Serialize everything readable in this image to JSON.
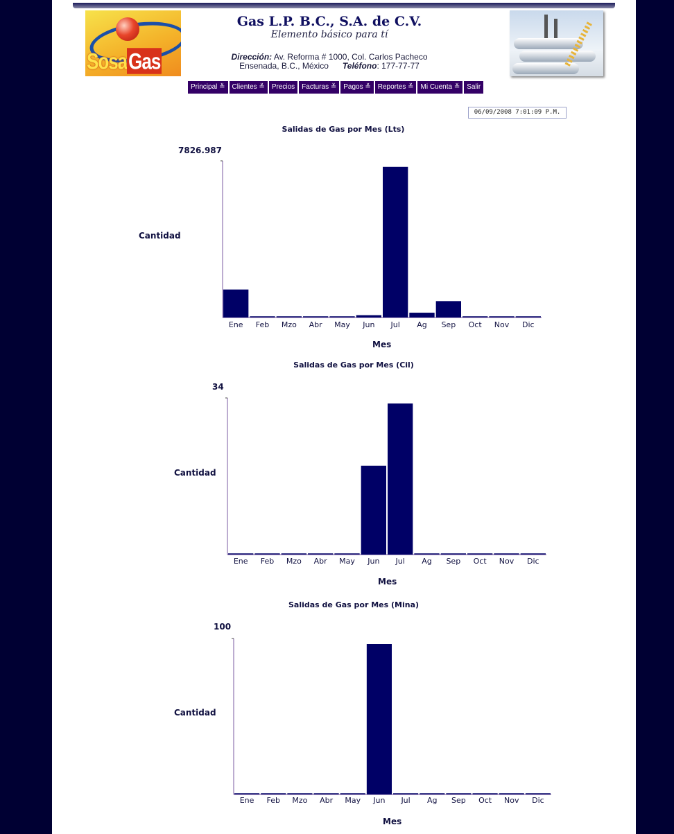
{
  "header": {
    "company": "Gas L.P. B.C., S.A. de C.V.",
    "slogan": "Elemento básico para tí",
    "address_label": "Dirección:",
    "address_value": " Av. Reforma # 1000, Col. Carlos Pacheco",
    "city": "Ensenada, B.C., México",
    "phone_label": "Teléfono",
    "phone_value": ":  177-77-77",
    "logo_word_1": "Sosa",
    "logo_word_2": "Gas"
  },
  "nav": [
    {
      "label": "Principal ≚"
    },
    {
      "label": "Clientes ≚"
    },
    {
      "label": "Precios"
    },
    {
      "label": "Facturas ≚"
    },
    {
      "label": "Pagos ≚"
    },
    {
      "label": "Reportes ≚"
    },
    {
      "label": "Mi Cuenta ≚"
    },
    {
      "label": "Salir"
    }
  ],
  "datetime": "06/09/2008   7:01:09 P.M.",
  "colors": {
    "bar": "#000066",
    "axis": "#7a5aa0",
    "nav": "#330066",
    "background": "#000033"
  },
  "chart_data": [
    {
      "type": "bar",
      "title": "Salidas de Gas por Mes (Lts)",
      "xlabel": "Mes",
      "ylabel": "Cantidad",
      "ymax_label": "7826.987",
      "ylim": [
        0,
        7826.987
      ],
      "categories": [
        "Ene",
        "Feb",
        "Mzo",
        "Abr",
        "May",
        "Jun",
        "Jul",
        "Ag",
        "Sep",
        "Oct",
        "Nov",
        "Dic"
      ],
      "values": [
        1450,
        0,
        0,
        0,
        0,
        120,
        7800,
        250,
        850,
        0,
        0,
        0
      ]
    },
    {
      "type": "bar",
      "title": "Salidas de Gas por Mes (Cil)",
      "xlabel": "Mes",
      "ylabel": "Cantidad",
      "ymax_label": "34",
      "ylim": [
        0,
        34
      ],
      "categories": [
        "Ene",
        "Feb",
        "Mzo",
        "Abr",
        "May",
        "Jun",
        "Jul",
        "Ag",
        "Sep",
        "Oct",
        "Nov",
        "Dic"
      ],
      "values": [
        0,
        0,
        0,
        0,
        0,
        20,
        34,
        0,
        0,
        0,
        0,
        0
      ]
    },
    {
      "type": "bar",
      "title": "Salidas de Gas por Mes (Mina)",
      "xlabel": "Mes",
      "ylabel": "Cantidad",
      "ymax_label": "100",
      "ylim": [
        0,
        100
      ],
      "categories": [
        "Ene",
        "Feb",
        "Mzo",
        "Abr",
        "May",
        "Jun",
        "Jul",
        "Ag",
        "Sep",
        "Oct",
        "Nov",
        "Dic"
      ],
      "values": [
        0,
        0,
        0,
        0,
        0,
        100,
        0,
        0,
        0,
        0,
        0,
        0
      ]
    }
  ]
}
